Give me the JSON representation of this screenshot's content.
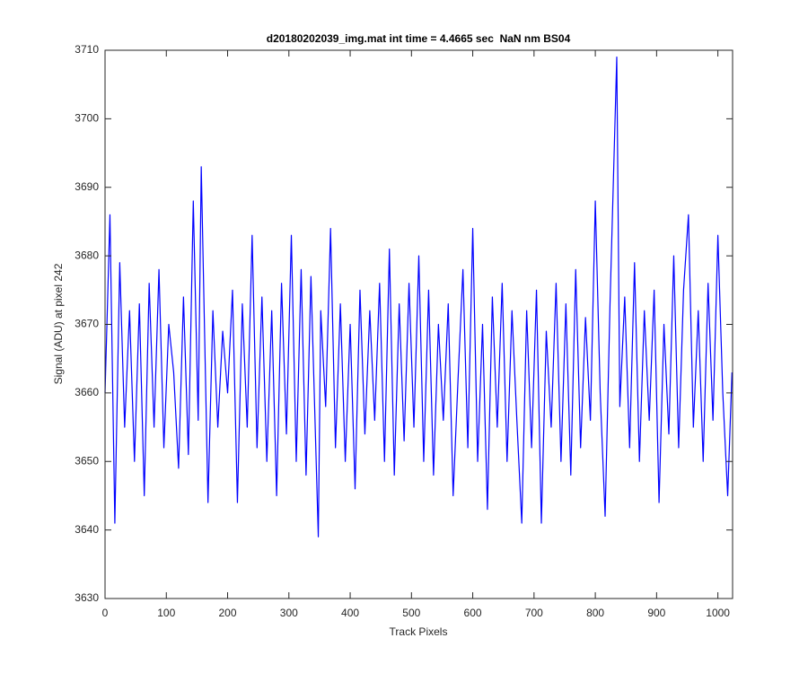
{
  "chart_data": {
    "type": "line",
    "title": "d20180202039_img.mat int time = 4.4665 sec  NaN nm BS04",
    "x_label": "Track Pixels",
    "y_label": "Signal (ADU) at pixel 242",
    "x": [
      0,
      8,
      16,
      24,
      32,
      40,
      48,
      56,
      64,
      72,
      80,
      88,
      96,
      104,
      112,
      120,
      128,
      136,
      144,
      152,
      157,
      168,
      176,
      184,
      192,
      200,
      208,
      216,
      224,
      232,
      240,
      248,
      256,
      264,
      272,
      280,
      288,
      296,
      304,
      312,
      320,
      328,
      336,
      348,
      352,
      360,
      368,
      376,
      384,
      392,
      400,
      408,
      416,
      424,
      432,
      440,
      448,
      456,
      464,
      472,
      480,
      488,
      496,
      504,
      512,
      520,
      528,
      536,
      544,
      552,
      560,
      568,
      576,
      584,
      592,
      600,
      608,
      616,
      624,
      632,
      640,
      648,
      656,
      664,
      672,
      680,
      688,
      696,
      704,
      712,
      720,
      728,
      736,
      744,
      752,
      760,
      768,
      776,
      784,
      792,
      800,
      808,
      816,
      824,
      835,
      840,
      848,
      856,
      864,
      872,
      880,
      888,
      896,
      904,
      912,
      920,
      928,
      936,
      944,
      952,
      960,
      968,
      976,
      984,
      992,
      1000,
      1008,
      1016,
      1023
    ],
    "series": [
      {
        "color": "#0000ff",
        "values": [
          3660,
          3686,
          3641,
          3679,
          3655,
          3672,
          3650,
          3673,
          3645,
          3676,
          3655,
          3678,
          3652,
          3670,
          3663,
          3649,
          3674,
          3651,
          3688,
          3656,
          3693,
          3644,
          3672,
          3655,
          3669,
          3660,
          3675,
          3644,
          3673,
          3655,
          3683,
          3652,
          3674,
          3650,
          3672,
          3645,
          3676,
          3654,
          3683,
          3650,
          3678,
          3648,
          3677,
          3639,
          3672,
          3658,
          3684,
          3652,
          3673,
          3650,
          3670,
          3646,
          3675,
          3654,
          3672,
          3656,
          3676,
          3650,
          3681,
          3648,
          3673,
          3653,
          3676,
          3655,
          3680,
          3650,
          3675,
          3648,
          3670,
          3656,
          3673,
          3645,
          3662,
          3678,
          3652,
          3684,
          3650,
          3670,
          3643,
          3674,
          3655,
          3676,
          3650,
          3672,
          3656,
          3641,
          3672,
          3652,
          3675,
          3641,
          3669,
          3655,
          3676,
          3650,
          3673,
          3648,
          3678,
          3652,
          3671,
          3656,
          3688,
          3660,
          3642,
          3673,
          3709,
          3658,
          3674,
          3652,
          3679,
          3650,
          3672,
          3656,
          3675,
          3644,
          3670,
          3654,
          3680,
          3652,
          3675,
          3686,
          3655,
          3672,
          3650,
          3676,
          3656,
          3683,
          3660,
          3645,
          3663
        ]
      }
    ],
    "xlim": [
      0,
      1024
    ],
    "xticks": [
      0,
      100,
      200,
      300,
      400,
      500,
      600,
      700,
      800,
      900,
      1000
    ],
    "ylim": [
      3630,
      3710
    ],
    "yticks": [
      3630,
      3640,
      3650,
      3660,
      3670,
      3680,
      3690,
      3700,
      3710
    ]
  }
}
